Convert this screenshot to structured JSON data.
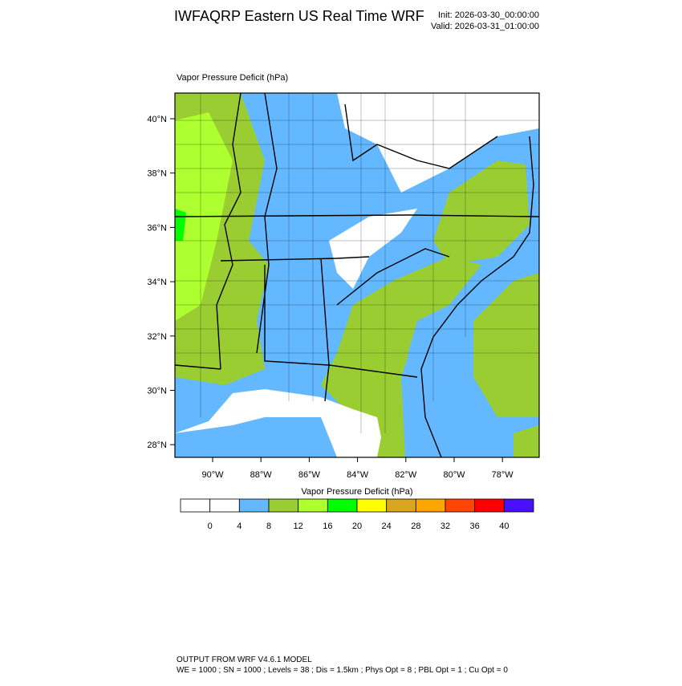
{
  "title": "IWFAQRP Eastern US Real Time WRF",
  "init": "Init: 2026-03-30_00:00:00",
  "valid": "Valid: 2026-03-31_01:00:00",
  "map": {
    "title": "Vapor Pressure Deficit   (hPa)",
    "lat_labels": [
      "40°N",
      "38°N",
      "36°N",
      "34°N",
      "32°N",
      "30°N",
      "28°N"
    ],
    "lon_labels": [
      "90°W",
      "88°W",
      "86°W",
      "84°W",
      "82°W",
      "80°W",
      "78°W"
    ]
  },
  "colorbar": {
    "title": "Vapor Pressure Deficit  (hPa)",
    "levels": [
      0,
      4,
      8,
      12,
      16,
      20,
      24,
      28,
      32,
      36,
      40
    ],
    "colors": [
      "#ffffff",
      "#ffffff",
      "#63b8ff",
      "#9acd32",
      "#adff2f",
      "#00ff00",
      "#ffff00",
      "#daa520",
      "#ffa500",
      "#ff4500",
      "#ff0000",
      "#4b0fff"
    ]
  },
  "footer": {
    "line1": "OUTPUT FROM WRF V4.6.1 MODEL",
    "line2": "WE = 1000 ; SN = 1000 ; Levels = 38 ; Dis = 1.5km ; Phys Opt = 8 ; PBL Opt = 1 ; Cu Opt = 0"
  }
}
